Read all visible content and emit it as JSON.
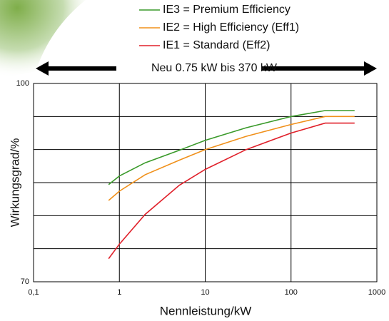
{
  "chart_data": {
    "type": "line",
    "annotation": "Neu 0.75 kW bis 370 kW",
    "x_label": "Nennleistung/kW",
    "y_label": "Wirkungsgrad/%",
    "x": [
      0.75,
      1,
      2,
      5,
      10,
      30,
      100,
      250,
      550
    ],
    "series": [
      {
        "name": "IE3 = Premium Efficiency",
        "color": "#3a9a2a",
        "values": [
          84.7,
          86,
          88,
          89.9,
          91.4,
          93.3,
          95,
          95.9,
          95.9
        ]
      },
      {
        "name": "IE2 = High Efficiency (Eff1)",
        "color": "#f0901a",
        "values": [
          82.3,
          83.7,
          86.2,
          88.4,
          90,
          92,
          93.8,
          95,
          95
        ]
      },
      {
        "name": "IE1 = Standard (Eff2)",
        "color": "#e0202a",
        "values": [
          73.5,
          75.7,
          80.2,
          84.6,
          87,
          90,
          92.5,
          94,
          94
        ]
      }
    ],
    "xlim": [
      0.1,
      1000
    ],
    "xscale": "log",
    "xticks": [
      {
        "value": 0.1,
        "label": "0,1"
      },
      1,
      10,
      100,
      1000
    ],
    "ylim": [
      70,
      100
    ],
    "yticks": [
      70,
      100
    ],
    "ygrid": [
      75,
      80,
      85,
      90,
      95
    ],
    "grid": true
  }
}
